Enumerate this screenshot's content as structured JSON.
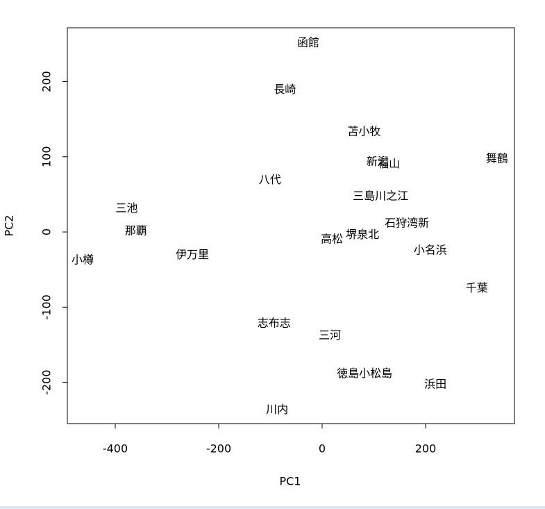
{
  "chart_data": {
    "type": "scatter",
    "xlabel": "PC1",
    "ylabel": "PC2",
    "xlim": [
      -492.6,
      371.8
    ],
    "ylim": [
      -254.8,
      271.5
    ],
    "xticks": [
      -400,
      -200,
      0,
      200
    ],
    "yticks": [
      -200,
      -100,
      0,
      100,
      200
    ],
    "color": "#000000",
    "labels": [
      "函館",
      "長崎",
      "苫小牧",
      "新潟",
      "福山",
      "舞鶴",
      "八代",
      "三島川之江",
      "三池",
      "石狩湾新",
      "那覇",
      "堺泉北",
      "高松",
      "小名浜",
      "伊万里",
      "小樽",
      "千葉",
      "志布志",
      "三河",
      "徳島小松島",
      "浜田",
      "川内"
    ],
    "x": [
      -27,
      -72,
      81,
      107,
      129,
      338,
      -101,
      113,
      -378,
      164,
      -360,
      78,
      19,
      209,
      -251,
      -463,
      299,
      -93,
      15,
      82,
      219,
      -87
    ],
    "y": [
      251,
      189,
      133,
      93,
      90,
      97,
      69,
      47,
      31,
      11,
      1,
      -4,
      -10,
      -25,
      -31,
      -38,
      -75,
      -122,
      -138,
      -189,
      -203,
      -237
    ]
  }
}
